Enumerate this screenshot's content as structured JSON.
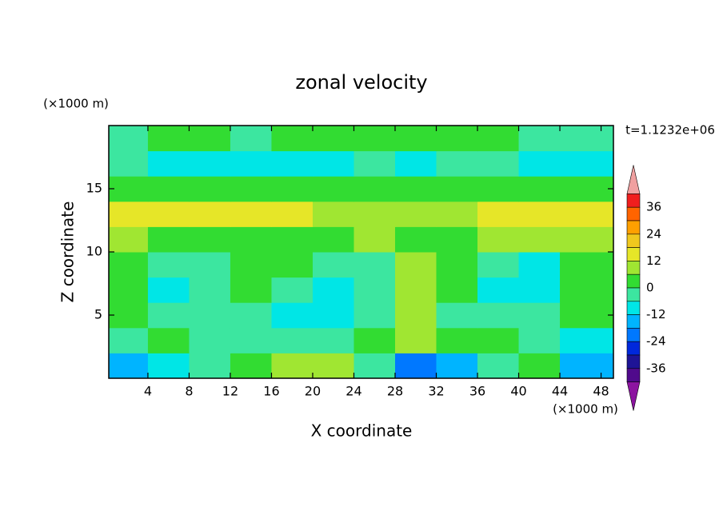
{
  "chart_data": {
    "type": "contour",
    "title": "zonal velocity",
    "x_label": "X coordinate",
    "y_label": "Z coordinate",
    "x_unit": "(×1000 m)",
    "y_unit": "(×1000 m)",
    "annotation": "t=1.1232e+06",
    "xlim": [
      0.2,
      49.2
    ],
    "ylim": [
      0,
      20
    ],
    "xticks": [
      4,
      8,
      12,
      16,
      20,
      24,
      28,
      32,
      36,
      40,
      44,
      48
    ],
    "yticks": [
      5,
      10,
      15
    ],
    "x": [
      2,
      6,
      10,
      14,
      18,
      22,
      26,
      30,
      34,
      38,
      42,
      46
    ],
    "y": [
      1,
      3,
      5,
      7,
      9,
      11,
      13,
      15,
      17,
      19
    ],
    "z": [
      [
        -13,
        -8,
        -4,
        2,
        8,
        8,
        -4,
        -20,
        -13,
        -4,
        2,
        -13
      ],
      [
        -4,
        2,
        -4,
        -4,
        -4,
        -4,
        2,
        8,
        2,
        2,
        -4,
        -8
      ],
      [
        2,
        -4,
        -4,
        -4,
        -8,
        -8,
        -4,
        9,
        -4,
        -4,
        -4,
        2
      ],
      [
        4,
        -8,
        -4,
        2,
        -4,
        -8,
        -4,
        9,
        2,
        -8,
        -8,
        4
      ],
      [
        3,
        -3,
        -5,
        2,
        2,
        -3,
        -5,
        8,
        2,
        -5,
        -8,
        3
      ],
      [
        8,
        5,
        4,
        3,
        2,
        3,
        8,
        2,
        4,
        8,
        8,
        8
      ],
      [
        13,
        14,
        14,
        14,
        13,
        10,
        9,
        8,
        10,
        14,
        14,
        14
      ],
      [
        3,
        3,
        3,
        2,
        2,
        2,
        3,
        3,
        2,
        2,
        2,
        3
      ],
      [
        -4,
        -8,
        -8,
        -9,
        -9,
        -8,
        -4,
        -8,
        -4,
        -4,
        -8,
        -8
      ],
      [
        -3,
        2,
        2,
        -3,
        2,
        2,
        2,
        2,
        2,
        2,
        -3,
        -3
      ]
    ],
    "colorbar": {
      "levels": [
        -42,
        -36,
        -30,
        -24,
        -18,
        -12,
        -6,
        0,
        6,
        12,
        18,
        24,
        30,
        36,
        42
      ],
      "colors": [
        "#500a8c",
        "#1e1496",
        "#0028dc",
        "#0078ff",
        "#00b4ff",
        "#00e6e6",
        "#3ce6a0",
        "#32dc32",
        "#a0e632",
        "#e6e628",
        "#f0c81e",
        "#ffa000",
        "#ff6400",
        "#f01e1e"
      ],
      "extend_colors": [
        "#8c14a0",
        "#f0a0a0"
      ],
      "ticks": [
        -36,
        -24,
        -12,
        0,
        12,
        24,
        36
      ]
    }
  }
}
